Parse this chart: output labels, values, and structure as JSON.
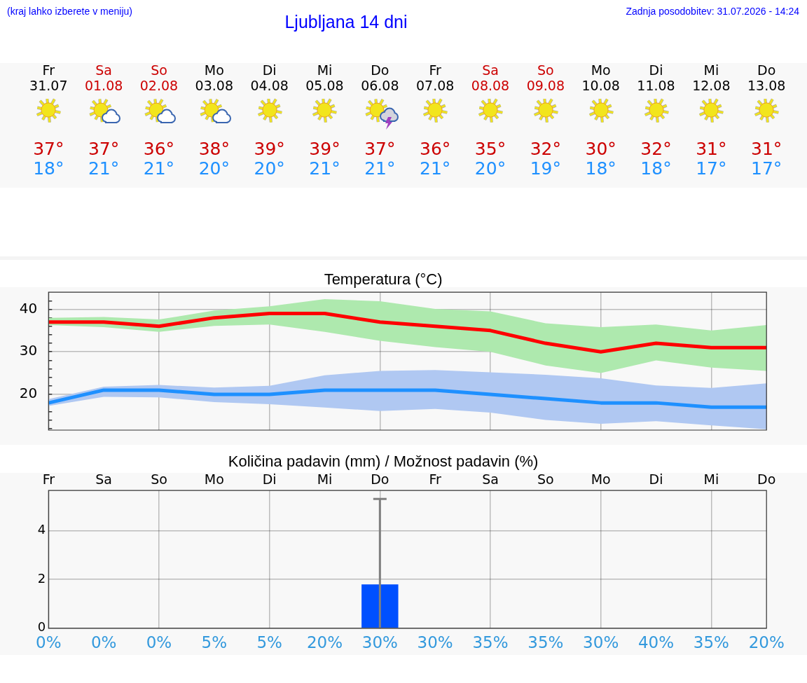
{
  "chart_data": [
    {
      "type": "other",
      "title": "Ljubljana 14 dni",
      "annotations": [
        "(kraj lahko izberete v meniju)",
        "Zadnja posodobitev: 31.07.2026 - 14:24"
      ]
    },
    {
      "type": "line",
      "title": "Temperatura (°C)",
      "categories": [
        null,
        null,
        null,
        null,
        null,
        null,
        null,
        null,
        null,
        null,
        null,
        null,
        null,
        null
      ],
      "annotations": [
        "Fr\n31.07",
        "Sa\n01.08",
        "So\n02.08",
        "Mo\n03.08",
        "Di\n04.08",
        "Mi\n05.08",
        "Do\n06.08",
        "Fr\n07.08",
        "Sa\n08.08",
        "So\n09.08",
        "Mo\n10.08",
        "Di\n11.08",
        "Mi\n12.08",
        "Do\n13.08"
      ],
      "series": [
        {
          "color": "#ff0000",
          "values": [
            37,
            37,
            36,
            38,
            39,
            39,
            37,
            36,
            35,
            32,
            30,
            32,
            31,
            31
          ],
          "value_labels": [
            "37°",
            "37°",
            "36°",
            "38°",
            "39°",
            "39°",
            "37°",
            "36°",
            "35°",
            "32°",
            "30°",
            "32°",
            "31°",
            "31°"
          ],
          "lower": [
            36.3,
            35.8,
            34.7,
            36.1,
            36.4,
            34.7,
            32.6,
            31.1,
            30.0,
            26.8,
            25.0,
            28.0,
            26.3,
            25.5
          ],
          "upper": [
            38.0,
            38.2,
            37.6,
            39.7,
            40.7,
            42.4,
            41.9,
            40.1,
            39.5,
            36.7,
            35.8,
            36.4,
            35.0,
            36.3
          ]
        },
        {
          "color": "#1e90ff",
          "values": [
            18,
            21,
            21,
            20,
            20,
            21,
            21,
            21,
            20,
            19,
            18,
            18,
            17,
            17
          ],
          "value_labels": [
            "18°",
            "21°",
            "21°",
            "20°",
            "20°",
            "21°",
            "21°",
            "21°",
            "20°",
            "19°",
            "18°",
            "18°",
            "17°",
            "17°"
          ],
          "lower": [
            17.3,
            19.4,
            19.3,
            18.2,
            17.7,
            16.9,
            16.1,
            16.6,
            15.7,
            14.0,
            13.1,
            13.7,
            12.7,
            11.8
          ],
          "upper": [
            18.9,
            21.8,
            22.2,
            21.6,
            22.0,
            24.5,
            25.5,
            25.7,
            25.2,
            24.6,
            23.8,
            22.1,
            21.5,
            22.6
          ]
        }
      ],
      "ylim": [
        11.6,
        44
      ],
      "yticks": [
        {
          "value": 12,
          "label": null
        },
        {
          "value": 14,
          "label": null
        },
        {
          "value": 16,
          "label": null
        },
        {
          "value": 18,
          "label": null
        },
        20,
        {
          "value": 22,
          "label": null
        },
        {
          "value": 24,
          "label": null
        },
        {
          "value": 26,
          "label": null
        },
        {
          "value": 28,
          "label": null
        },
        30,
        {
          "value": 32,
          "label": null
        },
        {
          "value": 34,
          "label": null
        },
        {
          "value": 36,
          "label": null
        },
        {
          "value": 38,
          "label": null
        },
        40,
        {
          "value": 42,
          "label": null
        }
      ],
      "grid": true,
      "marker": "none",
      "tick_labels": "y"
    },
    {
      "type": "bar",
      "title": "Količina padavin (mm) / Možnost padavin (%)",
      "categories": [
        "Fr",
        "Sa",
        "So",
        "Mo",
        "Di",
        "Mi",
        "Do",
        "Fr",
        "Sa",
        "So",
        "Mo",
        "Di",
        "Mi",
        "Do"
      ],
      "values": [
        0,
        0,
        0,
        0,
        0,
        0,
        1.8,
        0,
        0,
        0,
        0,
        0,
        0,
        0
      ],
      "color": "#0050ff",
      "errors": [
        [
          0,
          0
        ],
        [
          0,
          0
        ],
        [
          0,
          0
        ],
        [
          0,
          0
        ],
        [
          0,
          0
        ],
        [
          0,
          0
        ],
        [
          0,
          5.3
        ],
        [
          0,
          0
        ],
        [
          0,
          0
        ],
        [
          0,
          0
        ],
        [
          0,
          0
        ],
        [
          0,
          0
        ],
        [
          0,
          0
        ],
        [
          0,
          0
        ]
      ],
      "ylim": [
        0,
        5.65
      ],
      "yticks": [
        0,
        2,
        4
      ],
      "grid": true,
      "annotations": [
        "0%",
        "0%",
        "0%",
        "5%",
        "5%",
        "20%",
        "30%",
        "30%",
        "35%",
        "35%",
        "30%",
        "40%",
        "35%",
        "20%"
      ]
    }
  ]
}
